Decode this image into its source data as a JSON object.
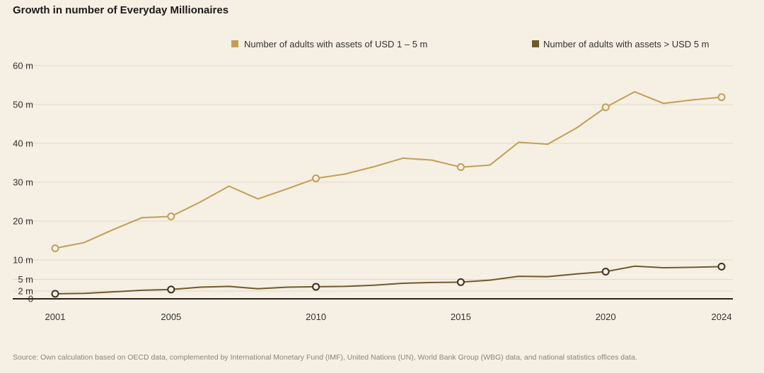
{
  "colors": {
    "background": "#f6efe3",
    "series_1_5m": "#c0a055",
    "series_gt5m": "#6f5a2c",
    "grid": "#e2d8c6",
    "axis": "#2a2218"
  },
  "chart_data": {
    "type": "line",
    "title": "Growth in number of Everyday Millionaires",
    "xlabel": "",
    "ylabel": "",
    "xlim": [
      2001,
      2024
    ],
    "ylim": [
      0,
      60
    ],
    "x_ticks": [
      2001,
      2005,
      2010,
      2015,
      2020,
      2024
    ],
    "x_tick_labels": [
      "2001",
      "2005",
      "2010",
      "2015",
      "2020",
      "2024"
    ],
    "y_ticks": [
      0,
      2,
      5,
      10,
      20,
      30,
      40,
      50,
      60
    ],
    "y_tick_labels": [
      "0",
      "2 m",
      "5 m",
      "10 m",
      "20 m",
      "30 m",
      "40 m",
      "50 m",
      "60 m"
    ],
    "legend_position": "top-right",
    "series": [
      {
        "name": "Number of adults with assets of USD 1 – 5 m",
        "color": "#c0a055",
        "x": [
          2001,
          2002,
          2003,
          2004,
          2005,
          2006,
          2007,
          2008,
          2009,
          2010,
          2011,
          2012,
          2013,
          2014,
          2015,
          2016,
          2017,
          2018,
          2019,
          2020,
          2021,
          2022,
          2023,
          2024
        ],
        "values": [
          13.0,
          14.5,
          17.8,
          20.9,
          21.2,
          24.9,
          29.0,
          25.7,
          28.3,
          31.0,
          32.1,
          34.0,
          36.2,
          35.7,
          33.9,
          34.4,
          40.3,
          39.8,
          44.0,
          49.3,
          53.3,
          50.3,
          51.2,
          51.9
        ],
        "markers": [
          2001,
          2005,
          2010,
          2015,
          2020,
          2024
        ]
      },
      {
        "name": "Number of adults with assets > USD 5 m",
        "color": "#6f5a2c",
        "x": [
          2001,
          2002,
          2003,
          2004,
          2005,
          2006,
          2007,
          2008,
          2009,
          2010,
          2011,
          2012,
          2013,
          2014,
          2015,
          2016,
          2017,
          2018,
          2019,
          2020,
          2021,
          2022,
          2023,
          2024
        ],
        "values": [
          1.3,
          1.4,
          1.8,
          2.2,
          2.4,
          3.0,
          3.2,
          2.6,
          3.0,
          3.1,
          3.2,
          3.5,
          4.0,
          4.2,
          4.3,
          4.8,
          5.8,
          5.7,
          6.4,
          7.0,
          8.4,
          8.0,
          8.1,
          8.3
        ],
        "markers": [
          2001,
          2005,
          2010,
          2015,
          2020,
          2024
        ]
      }
    ],
    "source": "Source: Own calculation based on OECD data, complemented by International Monetary Fund (IMF), United Nations (UN), World Bank Group (WBG) data, and national statistics offices data."
  }
}
